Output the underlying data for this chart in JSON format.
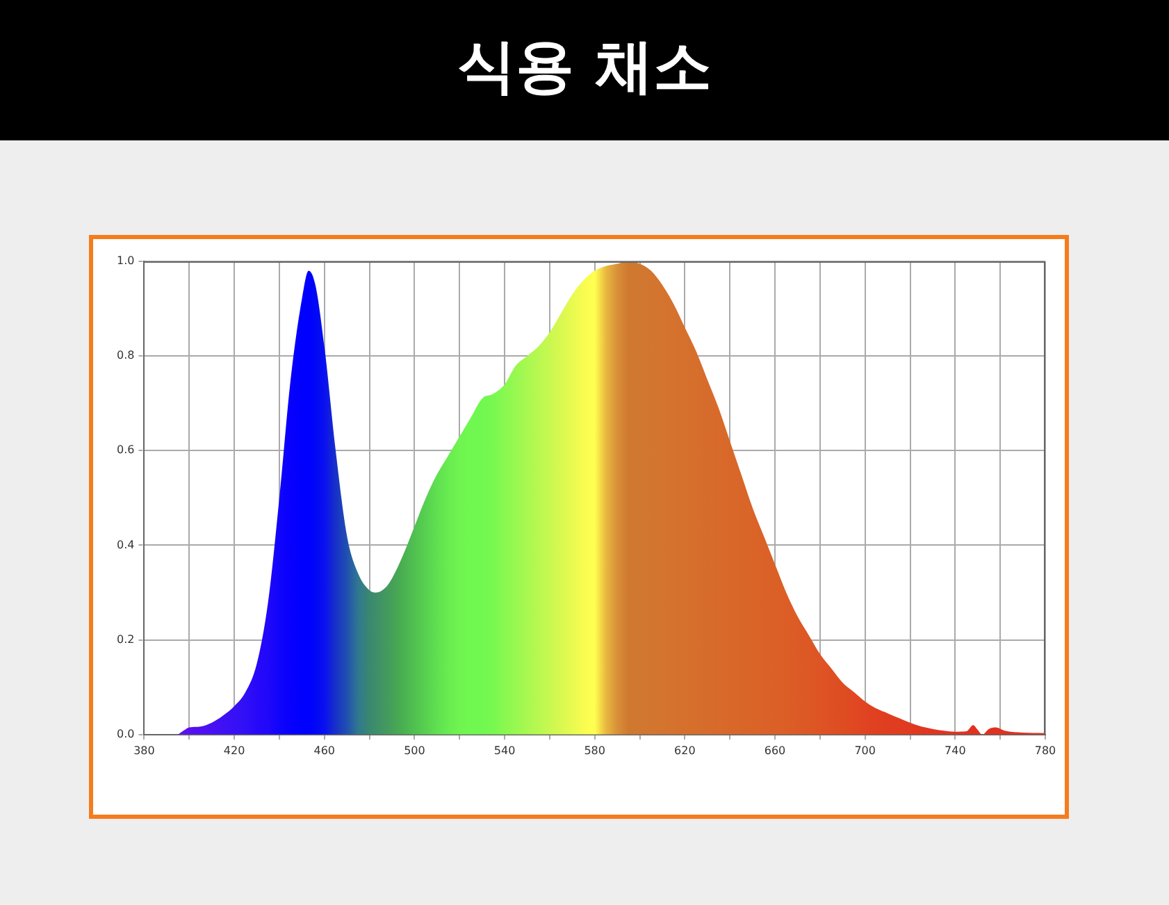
{
  "chart_data": {
    "type": "area",
    "title": "식용 채소",
    "xlim": [
      380,
      780
    ],
    "xticks": [
      380,
      {
        "value": 400,
        "label": null
      },
      420,
      {
        "value": 440,
        "label": null
      },
      460,
      {
        "value": 480,
        "label": null
      },
      500,
      {
        "value": 520,
        "label": null
      },
      540,
      {
        "value": 560,
        "label": null
      },
      580,
      {
        "value": 600,
        "label": null
      },
      620,
      {
        "value": 640,
        "label": null
      },
      660,
      {
        "value": 680,
        "label": null
      },
      700,
      {
        "value": 720,
        "label": null
      },
      740,
      {
        "value": 760,
        "label": null
      },
      780
    ],
    "ylim": [
      0,
      1
    ],
    "yticks": [
      {
        "value": 0,
        "label": "0.0"
      },
      0.2,
      0.4,
      0.6,
      0.8,
      {
        "value": 1,
        "label": "1.0"
      }
    ],
    "grid": true,
    "legend": false,
    "line_style": "dashed",
    "x": [
      395,
      398,
      400,
      405,
      410,
      415,
      420,
      425,
      430,
      435,
      440,
      445,
      450,
      453,
      456,
      460,
      465,
      470,
      475,
      480,
      483,
      487,
      490,
      495,
      500,
      505,
      510,
      515,
      520,
      525,
      530,
      535,
      540,
      545,
      550,
      555,
      560,
      565,
      570,
      575,
      580,
      585,
      590,
      595,
      600,
      605,
      610,
      615,
      620,
      625,
      630,
      635,
      640,
      645,
      650,
      655,
      660,
      665,
      670,
      675,
      680,
      685,
      690,
      695,
      700,
      705,
      710,
      715,
      720,
      725,
      730,
      735,
      740,
      745,
      748,
      750,
      752,
      755,
      758,
      762,
      770,
      780
    ],
    "values": [
      0,
      0.01,
      0.015,
      0.017,
      0.025,
      0.04,
      0.06,
      0.09,
      0.15,
      0.28,
      0.5,
      0.75,
      0.92,
      0.98,
      0.95,
      0.82,
      0.6,
      0.42,
      0.34,
      0.305,
      0.3,
      0.31,
      0.33,
      0.38,
      0.44,
      0.5,
      0.55,
      0.59,
      0.63,
      0.67,
      0.71,
      0.72,
      0.74,
      0.78,
      0.8,
      0.82,
      0.85,
      0.89,
      0.93,
      0.96,
      0.98,
      0.99,
      0.995,
      1,
      0.995,
      0.98,
      0.95,
      0.91,
      0.86,
      0.81,
      0.75,
      0.69,
      0.62,
      0.55,
      0.48,
      0.42,
      0.36,
      0.3,
      0.25,
      0.21,
      0.17,
      0.14,
      0.11,
      0.09,
      0.07,
      0.055,
      0.045,
      0.035,
      0.025,
      0.017,
      0.012,
      0.008,
      0.006,
      0.007,
      0.02,
      0.01,
      0,
      0.012,
      0.015,
      0.008,
      0.004,
      0.003
    ],
    "colors": [
      "#6010f0",
      "#5c10f0",
      "#5810f0",
      "#5010f0",
      "#4810f2",
      "#4010f4",
      "#3810f5",
      "#3010f6",
      "#2808f8",
      "#2008f9",
      "#1004fb",
      "#0800fd",
      "#0000ff",
      "#0000ff",
      "#0008f5",
      "#0a10f0",
      "#1830c8",
      "#2050b0",
      "#307890",
      "#3a8870",
      "#3e8e68",
      "#439860",
      "#45a058",
      "#4ab050",
      "#50c050",
      "#58d050",
      "#60e050",
      "#68ec50",
      "#70f450",
      "#70f850",
      "#70f850",
      "#78f850",
      "#88f850",
      "#98f850",
      "#a8f850",
      "#b8f850",
      "#c8f850",
      "#d8f850",
      "#e8fa50",
      "#f8fc50",
      "#ffff50",
      "#e8b840",
      "#d89038",
      "#d07830",
      "#d07830",
      "#d27630",
      "#d4742e",
      "#d4722e",
      "#d6702c",
      "#d66e2c",
      "#d66c2c",
      "#d86a2a",
      "#d8682a",
      "#d86628",
      "#da6428",
      "#da6228",
      "#da6026",
      "#dc5e26",
      "#dc5a26",
      "#dc5824",
      "#de5424",
      "#de5024",
      "#de4c22",
      "#e04822",
      "#e04422",
      "#e04020",
      "#e03e20",
      "#e03c20",
      "#e03a20",
      "#e03820",
      "#e03620",
      "#e03420",
      "#e03420",
      "#e03320",
      "#e03220",
      "#e03220",
      "#e03220",
      "#e03220",
      "#e03220",
      "#e03220",
      "#e03220",
      "#e03220"
    ]
  }
}
